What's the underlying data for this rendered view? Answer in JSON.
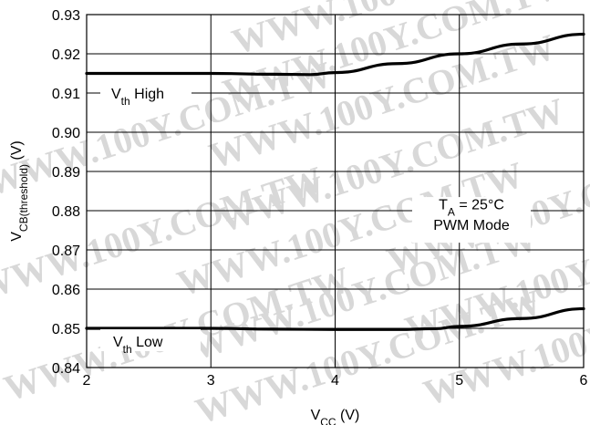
{
  "chart_data": {
    "type": "line",
    "xlabel": {
      "main": "V",
      "sub": "CC",
      "suffix": " (V)"
    },
    "ylabel": {
      "main": "V",
      "sub": "CB(threshold)",
      "suffix": " (V)"
    },
    "xlim": [
      2,
      6
    ],
    "ylim": [
      0.84,
      0.93
    ],
    "xticks": [
      2,
      3,
      4,
      5,
      6
    ],
    "xtick_labels": [
      "2",
      "3",
      "4",
      "5",
      "6"
    ],
    "yticks": [
      0.84,
      0.85,
      0.86,
      0.87,
      0.88,
      0.89,
      0.9,
      0.91,
      0.92,
      0.93
    ],
    "ytick_labels": [
      "0.84",
      "0.85",
      "0.86",
      "0.87",
      "0.88",
      "0.89",
      "0.90",
      "0.91",
      "0.92",
      "0.93"
    ],
    "grid": true,
    "series": [
      {
        "name": "Vth High",
        "label": {
          "main": "V",
          "sub": "th",
          "suffix": " High"
        },
        "x": [
          2.0,
          2.5,
          3.0,
          3.5,
          3.8,
          4.0,
          4.5,
          5.0,
          5.5,
          6.0
        ],
        "y": [
          0.915,
          0.915,
          0.915,
          0.9148,
          0.9147,
          0.9152,
          0.9175,
          0.92,
          0.9225,
          0.925
        ]
      },
      {
        "name": "Vth Low",
        "label": {
          "main": "V",
          "sub": "th",
          "suffix": " Low"
        },
        "x": [
          2.0,
          2.5,
          3.0,
          3.5,
          4.0,
          4.5,
          4.8,
          5.0,
          5.5,
          6.0
        ],
        "y": [
          0.85,
          0.85,
          0.85,
          0.8498,
          0.8497,
          0.8497,
          0.8499,
          0.8505,
          0.8525,
          0.855
        ]
      }
    ],
    "annotations": {
      "condition_temp": {
        "main": "T",
        "sub": "A",
        "suffix": " = 25°C"
      },
      "condition_mode": "PWM Mode"
    },
    "watermark": "WWW.100Y.COM.TW",
    "line_color": "#000000",
    "watermark_color": "#d8d8d8"
  }
}
